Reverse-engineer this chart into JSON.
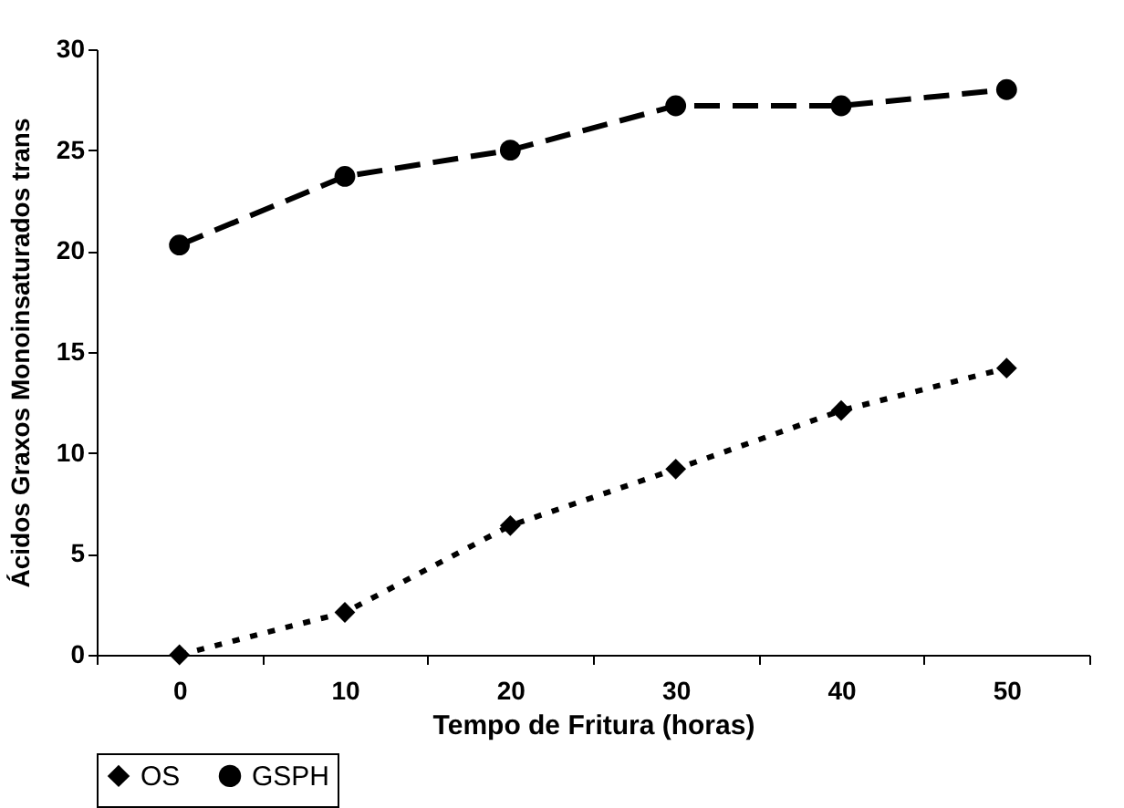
{
  "chart_data": {
    "type": "line",
    "xlabel": "Tempo de Fritura (horas)",
    "ylabel": "Ácidos Graxos Monoinsaturados trans",
    "categories": [
      "0",
      "10",
      "20",
      "30",
      "40",
      "50"
    ],
    "series": [
      {
        "name": "OS",
        "color": "#000000",
        "marker": "diamond",
        "line_style": "dotted",
        "values": [
          0,
          2.1,
          6.4,
          9.2,
          12.1,
          14.2
        ]
      },
      {
        "name": "GSPH",
        "color": "#000000",
        "marker": "circle",
        "line_style": "dashed",
        "values": [
          20.3,
          23.7,
          25,
          27.2,
          27.2,
          28
        ]
      }
    ],
    "ylim": [
      0,
      30
    ],
    "yticks": [
      0,
      5,
      10,
      15,
      20,
      25,
      30
    ],
    "grid": false,
    "legend": "bottom"
  }
}
